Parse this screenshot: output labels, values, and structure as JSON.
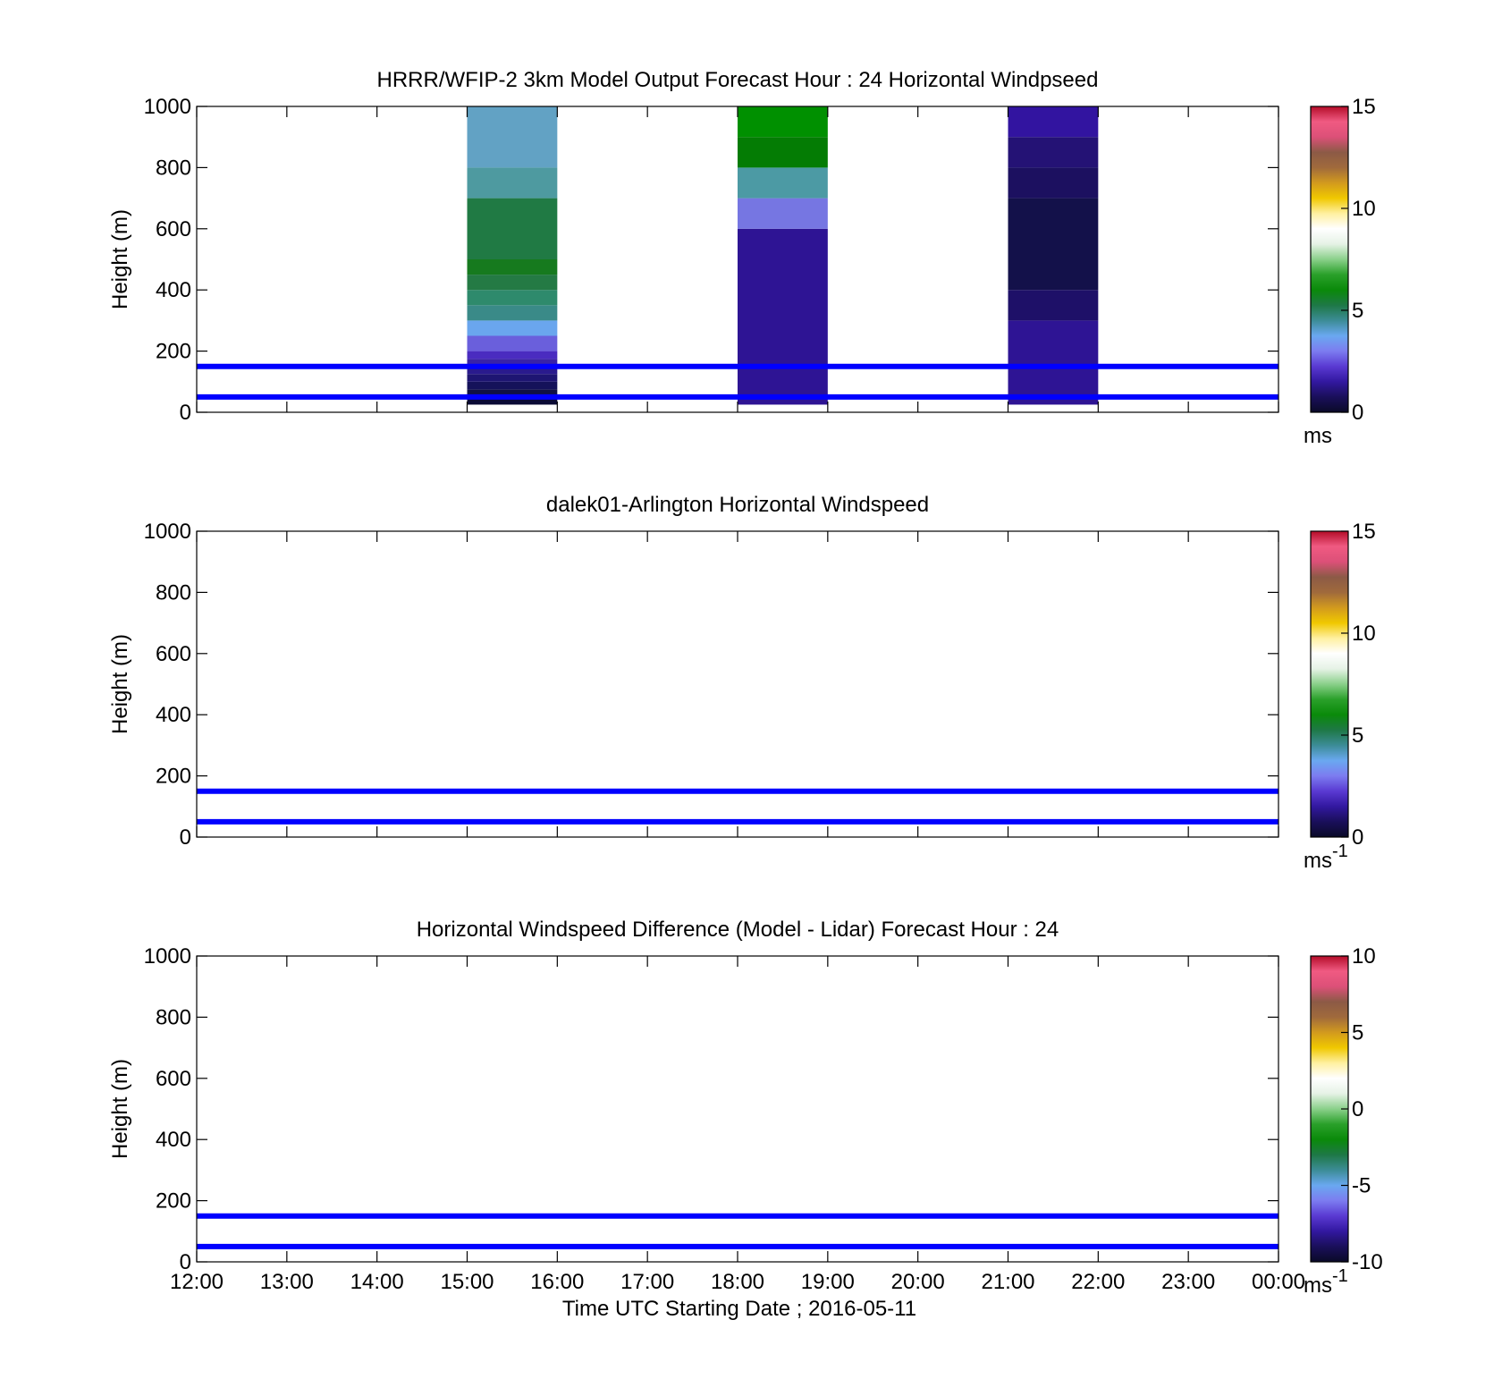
{
  "chart_data": [
    {
      "type": "heatmap",
      "title": "HRRR/WFIP-2 3km Model Output   Forecast Hour : 24 Horizontal Windpseed",
      "xlabel": "",
      "ylabel": "Height (m)",
      "xlim": [
        12,
        24
      ],
      "ylim": [
        0,
        1000
      ],
      "x_ticks": [
        12,
        13,
        14,
        15,
        16,
        17,
        18,
        19,
        20,
        21,
        22,
        23,
        24
      ],
      "y_ticks": [
        "0",
        "200",
        "400",
        "600",
        "800",
        "1000"
      ],
      "colorbar": {
        "colormap": "windspeed",
        "min": 0,
        "max": 15,
        "ticks": [
          "0",
          "5",
          "10",
          "15"
        ],
        "unit": "ms",
        "unit_sup": ""
      },
      "ref_lines_m": [
        50,
        150
      ],
      "ref_line_color": "#0000ff",
      "profiles": [
        {
          "x_start": 15,
          "x_end": 16,
          "cells": [
            {
              "y0": 25,
              "y1": 50,
              "color": "#0b0b35"
            },
            {
              "y0": 50,
              "y1": 75,
              "color": "#101045"
            },
            {
              "y0": 75,
              "y1": 100,
              "color": "#15125a"
            },
            {
              "y0": 100,
              "y1": 125,
              "color": "#1e1572"
            },
            {
              "y0": 125,
              "y1": 150,
              "color": "#2a1a8e"
            },
            {
              "y0": 150,
              "y1": 175,
              "color": "#3a22a8"
            },
            {
              "y0": 175,
              "y1": 200,
              "color": "#4a2cc0"
            },
            {
              "y0": 200,
              "y1": 250,
              "color": "#6a5fdc"
            },
            {
              "y0": 250,
              "y1": 300,
              "color": "#6aa6ee"
            },
            {
              "y0": 300,
              "y1": 350,
              "color": "#3a8a88"
            },
            {
              "y0": 350,
              "y1": 400,
              "color": "#2e8a6c"
            },
            {
              "y0": 400,
              "y1": 450,
              "color": "#247a44"
            },
            {
              "y0": 450,
              "y1": 500,
              "color": "#167a1e"
            },
            {
              "y0": 500,
              "y1": 700,
              "color": "#207a44"
            },
            {
              "y0": 700,
              "y1": 800,
              "color": "#4e9aa0"
            },
            {
              "y0": 800,
              "y1": 1000,
              "color": "#62a2c4"
            }
          ]
        },
        {
          "x_start": 18,
          "x_end": 19,
          "cells": [
            {
              "y0": 25,
              "y1": 600,
              "color": "#2e1494"
            },
            {
              "y0": 600,
              "y1": 700,
              "color": "#7676e2"
            },
            {
              "y0": 700,
              "y1": 800,
              "color": "#4c9aa4"
            },
            {
              "y0": 800,
              "y1": 900,
              "color": "#047c04"
            },
            {
              "y0": 900,
              "y1": 1000,
              "color": "#009000"
            }
          ]
        },
        {
          "x_start": 21,
          "x_end": 22,
          "cells": [
            {
              "y0": 25,
              "y1": 300,
              "color": "#2e1494"
            },
            {
              "y0": 300,
              "y1": 400,
              "color": "#1e1068"
            },
            {
              "y0": 400,
              "y1": 700,
              "color": "#13114a"
            },
            {
              "y0": 700,
              "y1": 800,
              "color": "#1c1060"
            },
            {
              "y0": 800,
              "y1": 900,
              "color": "#241275"
            },
            {
              "y0": 900,
              "y1": 1000,
              "color": "#3214a0"
            }
          ]
        }
      ]
    },
    {
      "type": "heatmap",
      "title": "dalek01-Arlington  Horizontal Windspeed",
      "xlabel": "",
      "ylabel": "Height (m)",
      "xlim": [
        12,
        24
      ],
      "ylim": [
        0,
        1000
      ],
      "x_ticks": [
        12,
        13,
        14,
        15,
        16,
        17,
        18,
        19,
        20,
        21,
        22,
        23,
        24
      ],
      "y_ticks": [
        "0",
        "200",
        "400",
        "600",
        "800",
        "1000"
      ],
      "colorbar": {
        "colormap": "windspeed",
        "min": 0,
        "max": 15,
        "ticks": [
          "0",
          "5",
          "10",
          "15"
        ],
        "unit": "ms",
        "unit_sup": "-1"
      },
      "ref_lines_m": [
        50,
        150
      ],
      "ref_line_color": "#0000ff",
      "profiles": []
    },
    {
      "type": "heatmap",
      "title": "Horizontal Windspeed Difference (Model - Lidar) Forecast Hour : 24",
      "xlabel": "Time UTC  Starting Date ; 2016-05-11",
      "ylabel": "Height (m)",
      "xlim": [
        12,
        24
      ],
      "ylim": [
        0,
        1000
      ],
      "x_ticks": [
        12,
        13,
        14,
        15,
        16,
        17,
        18,
        19,
        20,
        21,
        22,
        23,
        24
      ],
      "x_tick_labels": [
        "12:00",
        "13:00",
        "14:00",
        "15:00",
        "16:00",
        "17:00",
        "18:00",
        "19:00",
        "20:00",
        "21:00",
        "22:00",
        "23:00",
        "00:00"
      ],
      "y_ticks": [
        "0",
        "200",
        "400",
        "600",
        "800",
        "1000"
      ],
      "colorbar": {
        "colormap": "windspeed",
        "min": -10,
        "max": 10,
        "ticks": [
          "-10",
          "-5",
          "0",
          "5",
          "10"
        ],
        "unit": "ms",
        "unit_sup": "-1"
      },
      "ref_lines_m": [
        50,
        150
      ],
      "ref_line_color": "#0000ff",
      "profiles": []
    }
  ],
  "colormaps": {
    "windspeed": [
      "#0a0a28",
      "#1a0f5a",
      "#3218a0",
      "#5a3ad2",
      "#7c7cf0",
      "#6aa8f0",
      "#3c8c96",
      "#1e7846",
      "#0a8a0a",
      "#2aa02a",
      "#8ad08a",
      "#e6f2e6",
      "#ffffff",
      "#fff0a0",
      "#f0c800",
      "#d29a1e",
      "#a06a3c",
      "#8c5a46",
      "#dc5078",
      "#f05a82",
      "#b40c28"
    ]
  }
}
